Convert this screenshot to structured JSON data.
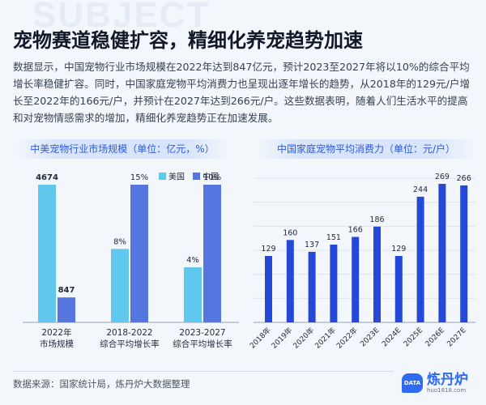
{
  "watermark": "SUBJECT",
  "title": "宠物赛道稳健扩容，精细化养宠趋势加速",
  "paragraph": "数据显示，中国宠物行业市场规模在2022年达到847亿元，预计2023至2027年将以10%的综合平均增长率稳健扩容。同时，中国家庭宠物平均消费力也呈现出逐年增长的趋势，从2018年的129元/户增长至2022年的166元/户，并预计在2027年达到266元/户。这些数据表明，随着人们生活水平的提高和对宠物情感需求的增加，精细化养宠趋势正在加速发展。",
  "source": "数据来源：国家统计局，炼丹炉大数据整理",
  "logo": {
    "name": "炼丹炉",
    "url": "huo1818.com",
    "badge": "DATA"
  },
  "colors": {
    "us": "#5fc8ec",
    "cn": "#5676df",
    "bar": "#2449d8",
    "accent": "#2f5bd8"
  },
  "chart_data": [
    {
      "type": "bar",
      "title": "中美宠物行业市场规模（单位：亿元，%）",
      "categories": [
        "2022年\n市场规模",
        "2018-2022\n综合平均增长率",
        "2023-2027\n综合平均增长率"
      ],
      "series": [
        {
          "name": "美国",
          "values": [
            4674,
            8,
            4
          ],
          "labels": [
            "4674",
            "8%",
            "4%"
          ]
        },
        {
          "name": "中国",
          "values": [
            847,
            15,
            10
          ],
          "labels": [
            "847",
            "15%",
            "10%"
          ]
        }
      ],
      "legend": "top-right"
    },
    {
      "type": "bar",
      "title": "中国家庭宠物平均消费力（单位：元/户）",
      "categories": [
        "2018年",
        "2019年",
        "2020年",
        "2021年",
        "2022年",
        "2023E",
        "2024E",
        "2025E",
        "2026E",
        "2027E"
      ],
      "values": [
        129,
        160,
        137,
        151,
        166,
        186,
        129,
        244,
        269,
        266
      ],
      "ylim": [
        0,
        280
      ],
      "grid": true
    }
  ]
}
